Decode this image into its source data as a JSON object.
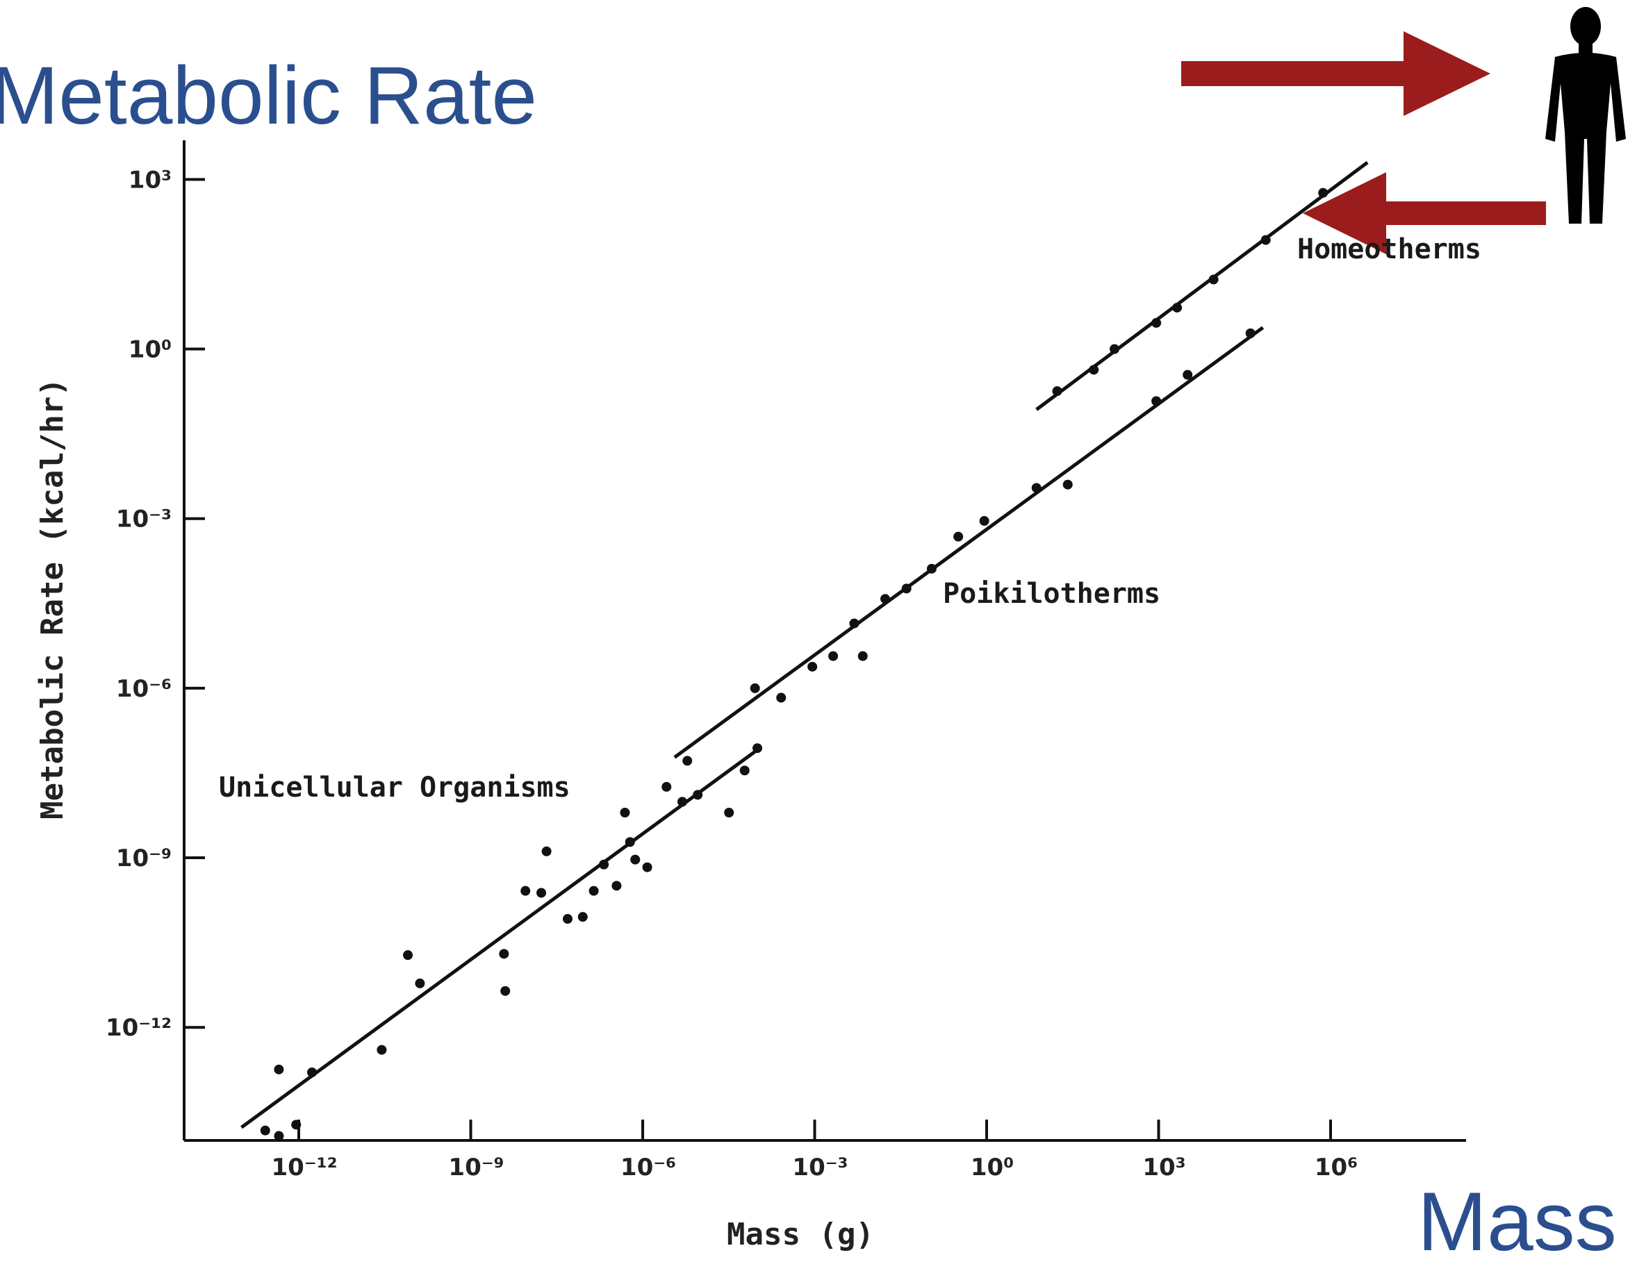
{
  "chart_data": {
    "type": "scatter",
    "title": "Metabolic Rate",
    "corner_label": "Mass",
    "x_label": "Mass (g)",
    "y_label": "Metabolic Rate (kcal/hr)",
    "log_x": true,
    "log_y": true,
    "xlim": [
      1e-14,
      100000000.0
    ],
    "ylim": [
      1e-14,
      10000.0
    ],
    "xticks": [
      {
        "value": 1e-12,
        "label": "10⁻¹²"
      },
      {
        "value": 1e-09,
        "label": "10⁻⁹"
      },
      {
        "value": 1e-06,
        "label": "10⁻⁶"
      },
      {
        "value": 0.001,
        "label": "10⁻³"
      },
      {
        "value": 1,
        "label": "10⁰"
      },
      {
        "value": 1000,
        "label": "10³"
      },
      {
        "value": 1000000.0,
        "label": "10⁶"
      }
    ],
    "yticks": [
      {
        "value": 1000,
        "label": "10³"
      },
      {
        "value": 1,
        "label": "10⁰"
      },
      {
        "value": 0.001,
        "label": "10⁻³"
      },
      {
        "value": 1e-06,
        "label": "10⁻⁶"
      },
      {
        "value": 1e-09,
        "label": "10⁻⁹"
      },
      {
        "value": 1e-12,
        "label": "10⁻¹²"
      }
    ],
    "series": [
      {
        "name": "Unicellular Organisms",
        "color": "#111111",
        "x": [
          2.6e-13,
          4.5e-13,
          9e-13,
          4.5e-13,
          1.7e-12,
          2.8e-11,
          8e-11,
          1.3e-10,
          3.8e-09,
          4e-09,
          9e-09,
          2.1e-08,
          1.7e-08,
          4.9e-08,
          9e-08,
          1.4e-07,
          2.1e-07,
          3.5e-07,
          4.9e-07,
          6e-07,
          7.4e-07,
          1.2e-06,
          2.6e-06,
          4.9e-06,
          6e-06,
          9.1e-06,
          3.2e-05,
          6e-05,
          0.0001
        ],
        "values": [
          1.5e-14,
          1.2e-14,
          1.9e-14,
          1.8e-13,
          1.6e-13,
          4e-13,
          1.9e-11,
          6e-12,
          2e-11,
          4.4e-12,
          2.6e-10,
          1.3e-09,
          2.4e-10,
          8.3e-11,
          9e-11,
          2.6e-10,
          7.6e-10,
          3.2e-10,
          6.3e-09,
          1.9e-09,
          9.3e-10,
          6.8e-10,
          1.8e-08,
          9.8e-09,
          5.2e-08,
          1.3e-08,
          6.3e-09,
          3.5e-08,
          8.7e-08
        ],
        "fit": {
          "x": [
            1e-13,
            0.00011
          ],
          "y": [
            1.7e-14,
            8.7e-08
          ]
        }
      },
      {
        "name": "Poikilotherms",
        "color": "#111111",
        "x": [
          9.1e-05,
          0.00026,
          0.00091,
          0.0021,
          0.0049,
          0.0069,
          0.017,
          0.04,
          0.11,
          0.32,
          0.91,
          7.4,
          26,
          910,
          3200,
          40000
        ],
        "values": [
          1e-06,
          6.8e-07,
          2.4e-06,
          3.7e-06,
          1.4e-05,
          3.7e-06,
          3.8e-05,
          5.8e-05,
          0.00013,
          0.00048,
          0.00091,
          0.0035,
          0.004,
          0.12,
          0.35,
          1.9
        ],
        "fit": {
          "x": [
            3.6e-06,
            66000
          ],
          "y": [
            6e-08,
            2.4
          ]
        }
      },
      {
        "name": "Homeotherms",
        "color": "#111111",
        "x": [
          17,
          74,
          170,
          910,
          2100,
          9100,
          74000,
          740000
        ],
        "values": [
          0.18,
          0.43,
          1,
          2.9,
          5.4,
          17,
          85,
          580
        ],
        "fit": {
          "x": [
            7.4,
            4400000.0
          ],
          "y": [
            0.085,
            2000
          ]
        }
      }
    ]
  }
}
